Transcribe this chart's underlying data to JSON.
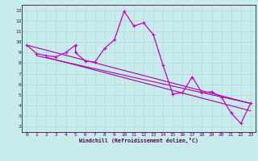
{
  "xlabel": "Windchill (Refroidissement éolien,°C)",
  "bg_color": "#c8ecec",
  "grid_color": "#b0d8d8",
  "line_color": "#aa00aa",
  "line_color2": "#cc00cc",
  "xlim": [
    -0.5,
    23.5
  ],
  "ylim": [
    1.5,
    13.5
  ],
  "yticks": [
    2,
    3,
    4,
    5,
    6,
    7,
    8,
    9,
    10,
    11,
    12,
    13
  ],
  "xticks": [
    0,
    1,
    2,
    3,
    4,
    5,
    6,
    7,
    8,
    9,
    10,
    11,
    12,
    13,
    14,
    15,
    16,
    17,
    18,
    19,
    20,
    21,
    22,
    23
  ],
  "series": [
    [
      0,
      9.7
    ],
    [
      1,
      8.9
    ],
    [
      2,
      8.7
    ],
    [
      3,
      8.6
    ],
    [
      4,
      9.0
    ],
    [
      5,
      9.7
    ],
    [
      5,
      9.0
    ],
    [
      6,
      8.2
    ],
    [
      7,
      8.1
    ],
    [
      8,
      9.4
    ],
    [
      9,
      10.2
    ],
    [
      10,
      12.9
    ],
    [
      11,
      11.5
    ],
    [
      12,
      11.8
    ],
    [
      13,
      10.7
    ],
    [
      14,
      7.8
    ],
    [
      15,
      5.1
    ],
    [
      16,
      5.2
    ],
    [
      17,
      6.7
    ],
    [
      18,
      5.2
    ],
    [
      19,
      5.3
    ],
    [
      20,
      4.8
    ],
    [
      21,
      3.3
    ],
    [
      22,
      2.3
    ],
    [
      23,
      4.2
    ]
  ],
  "linear1": [
    [
      0,
      9.7
    ],
    [
      23,
      4.2
    ]
  ],
  "linear2": [
    [
      1,
      8.7
    ],
    [
      23,
      4.2
    ]
  ],
  "linear3": [
    [
      2,
      8.55
    ],
    [
      23,
      3.5
    ]
  ]
}
